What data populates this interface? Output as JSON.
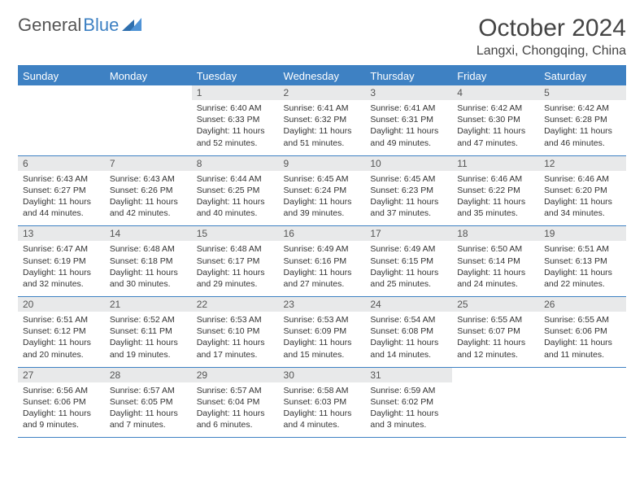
{
  "brand": {
    "part1": "General",
    "part2": "Blue"
  },
  "title": "October 2024",
  "location": "Langxi, Chongqing, China",
  "colors": {
    "accent": "#3e81c3",
    "header_bg": "#3e81c3",
    "header_text": "#ffffff",
    "daynum_bg": "#e8e9ea",
    "text": "#333333"
  },
  "weekdays": [
    "Sunday",
    "Monday",
    "Tuesday",
    "Wednesday",
    "Thursday",
    "Friday",
    "Saturday"
  ],
  "weeks": [
    [
      null,
      null,
      {
        "n": "1",
        "sr": "6:40 AM",
        "ss": "6:33 PM",
        "dl": "11 hours and 52 minutes."
      },
      {
        "n": "2",
        "sr": "6:41 AM",
        "ss": "6:32 PM",
        "dl": "11 hours and 51 minutes."
      },
      {
        "n": "3",
        "sr": "6:41 AM",
        "ss": "6:31 PM",
        "dl": "11 hours and 49 minutes."
      },
      {
        "n": "4",
        "sr": "6:42 AM",
        "ss": "6:30 PM",
        "dl": "11 hours and 47 minutes."
      },
      {
        "n": "5",
        "sr": "6:42 AM",
        "ss": "6:28 PM",
        "dl": "11 hours and 46 minutes."
      }
    ],
    [
      {
        "n": "6",
        "sr": "6:43 AM",
        "ss": "6:27 PM",
        "dl": "11 hours and 44 minutes."
      },
      {
        "n": "7",
        "sr": "6:43 AM",
        "ss": "6:26 PM",
        "dl": "11 hours and 42 minutes."
      },
      {
        "n": "8",
        "sr": "6:44 AM",
        "ss": "6:25 PM",
        "dl": "11 hours and 40 minutes."
      },
      {
        "n": "9",
        "sr": "6:45 AM",
        "ss": "6:24 PM",
        "dl": "11 hours and 39 minutes."
      },
      {
        "n": "10",
        "sr": "6:45 AM",
        "ss": "6:23 PM",
        "dl": "11 hours and 37 minutes."
      },
      {
        "n": "11",
        "sr": "6:46 AM",
        "ss": "6:22 PM",
        "dl": "11 hours and 35 minutes."
      },
      {
        "n": "12",
        "sr": "6:46 AM",
        "ss": "6:20 PM",
        "dl": "11 hours and 34 minutes."
      }
    ],
    [
      {
        "n": "13",
        "sr": "6:47 AM",
        "ss": "6:19 PM",
        "dl": "11 hours and 32 minutes."
      },
      {
        "n": "14",
        "sr": "6:48 AM",
        "ss": "6:18 PM",
        "dl": "11 hours and 30 minutes."
      },
      {
        "n": "15",
        "sr": "6:48 AM",
        "ss": "6:17 PM",
        "dl": "11 hours and 29 minutes."
      },
      {
        "n": "16",
        "sr": "6:49 AM",
        "ss": "6:16 PM",
        "dl": "11 hours and 27 minutes."
      },
      {
        "n": "17",
        "sr": "6:49 AM",
        "ss": "6:15 PM",
        "dl": "11 hours and 25 minutes."
      },
      {
        "n": "18",
        "sr": "6:50 AM",
        "ss": "6:14 PM",
        "dl": "11 hours and 24 minutes."
      },
      {
        "n": "19",
        "sr": "6:51 AM",
        "ss": "6:13 PM",
        "dl": "11 hours and 22 minutes."
      }
    ],
    [
      {
        "n": "20",
        "sr": "6:51 AM",
        "ss": "6:12 PM",
        "dl": "11 hours and 20 minutes."
      },
      {
        "n": "21",
        "sr": "6:52 AM",
        "ss": "6:11 PM",
        "dl": "11 hours and 19 minutes."
      },
      {
        "n": "22",
        "sr": "6:53 AM",
        "ss": "6:10 PM",
        "dl": "11 hours and 17 minutes."
      },
      {
        "n": "23",
        "sr": "6:53 AM",
        "ss": "6:09 PM",
        "dl": "11 hours and 15 minutes."
      },
      {
        "n": "24",
        "sr": "6:54 AM",
        "ss": "6:08 PM",
        "dl": "11 hours and 14 minutes."
      },
      {
        "n": "25",
        "sr": "6:55 AM",
        "ss": "6:07 PM",
        "dl": "11 hours and 12 minutes."
      },
      {
        "n": "26",
        "sr": "6:55 AM",
        "ss": "6:06 PM",
        "dl": "11 hours and 11 minutes."
      }
    ],
    [
      {
        "n": "27",
        "sr": "6:56 AM",
        "ss": "6:06 PM",
        "dl": "11 hours and 9 minutes."
      },
      {
        "n": "28",
        "sr": "6:57 AM",
        "ss": "6:05 PM",
        "dl": "11 hours and 7 minutes."
      },
      {
        "n": "29",
        "sr": "6:57 AM",
        "ss": "6:04 PM",
        "dl": "11 hours and 6 minutes."
      },
      {
        "n": "30",
        "sr": "6:58 AM",
        "ss": "6:03 PM",
        "dl": "11 hours and 4 minutes."
      },
      {
        "n": "31",
        "sr": "6:59 AM",
        "ss": "6:02 PM",
        "dl": "11 hours and 3 minutes."
      },
      null,
      null
    ]
  ],
  "labels": {
    "sunrise": "Sunrise:",
    "sunset": "Sunset:",
    "daylight": "Daylight:"
  }
}
